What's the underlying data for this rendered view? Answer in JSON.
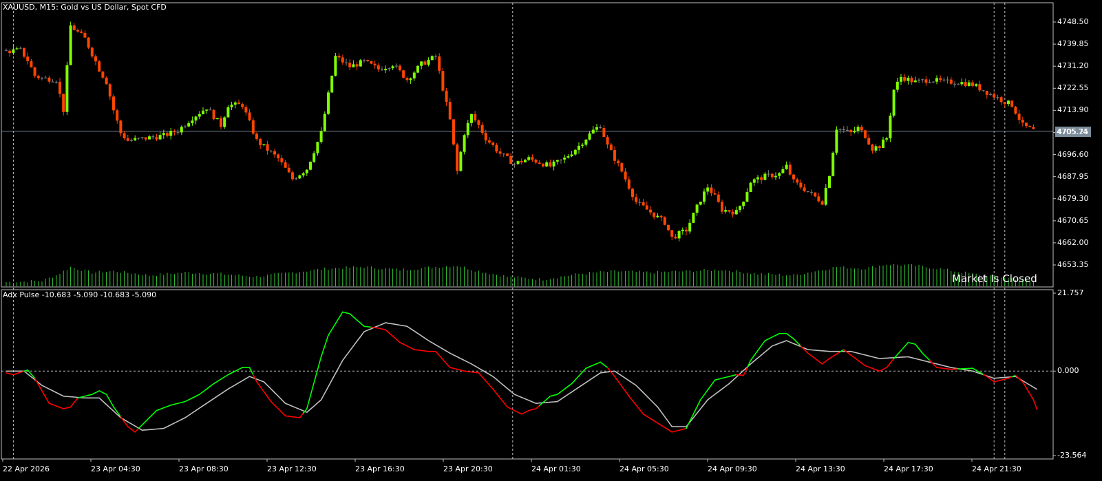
{
  "header": {
    "symbol_line": "XAUUSD, M15:  Gold vs US Dollar, Spot CFD",
    "indicator_line": "Adx Pulse -10.683 -5.090 -10.683 -5.090",
    "market_status": "Market Is Closed",
    "current_price": "4705.74"
  },
  "colors": {
    "background": "#000000",
    "bull_candle": "#7fff00",
    "bear_candle": "#ff4500",
    "neutral_candle": "#808080",
    "volume": "#32cd32",
    "pulse_up": "#00ff00",
    "pulse_down": "#ff0000",
    "signal_line": "#c0c0c0",
    "grid": "#c0c0c0",
    "price_line": "#7b8b99"
  },
  "chart_data": [
    {
      "type": "candlestick",
      "title": "XAUUSD, M15:  Gold vs US Dollar, Spot CFD",
      "ylim": [
        4648.0,
        4757.0
      ],
      "y_ticks": [
        "4748.50",
        "4739.85",
        "4731.20",
        "4722.55",
        "4713.90",
        "4705.25",
        "4696.60",
        "4687.95",
        "4679.30",
        "4670.65",
        "4662.00",
        "4653.35"
      ],
      "x_ticks": [
        "22 Apr 2026",
        "23 Apr 04:30",
        "23 Apr 08:30",
        "23 Apr 12:30",
        "23 Apr 16:30",
        "23 Apr 20:30",
        "24 Apr 01:30",
        "24 Apr 05:30",
        "24 Apr 09:30",
        "24 Apr 13:30",
        "24 Apr 17:30",
        "24 Apr 21:30"
      ],
      "current_price": 4705.74,
      "close_anchors": [
        [
          0,
          4737.0
        ],
        [
          4,
          4737.5
        ],
        [
          6,
          4733.5
        ],
        [
          8,
          4727.5
        ],
        [
          10,
          4726.5
        ],
        [
          14,
          4726.0
        ],
        [
          16,
          4714.0
        ],
        [
          18,
          4747.0
        ],
        [
          22,
          4742.0
        ],
        [
          26,
          4730.0
        ],
        [
          28,
          4725.0
        ],
        [
          30,
          4714.0
        ],
        [
          32,
          4705.0
        ],
        [
          34,
          4702.0
        ],
        [
          44,
          4704.0
        ],
        [
          48,
          4706.0
        ],
        [
          52,
          4711.0
        ],
        [
          56,
          4715.0
        ],
        [
          60,
          4708.0
        ],
        [
          62,
          4716.0
        ],
        [
          66,
          4716.0
        ],
        [
          70,
          4702.0
        ],
        [
          76,
          4695.0
        ],
        [
          80,
          4687.0
        ],
        [
          84,
          4691.0
        ],
        [
          88,
          4705.0
        ],
        [
          92,
          4735.0
        ],
        [
          96,
          4731.0
        ],
        [
          100,
          4733.0
        ],
        [
          104,
          4730.0
        ],
        [
          108,
          4732.0
        ],
        [
          112,
          4726.0
        ],
        [
          116,
          4732.0
        ],
        [
          120,
          4735.0
        ],
        [
          124,
          4710.0
        ],
        [
          126,
          4690.0
        ],
        [
          128,
          4705.0
        ],
        [
          130,
          4712.0
        ],
        [
          132,
          4708.0
        ],
        [
          134,
          4703.0
        ],
        [
          138,
          4697.0
        ],
        [
          142,
          4693.0
        ],
        [
          146,
          4695.0
        ],
        [
          148,
          4694.0
        ],
        [
          152,
          4692.0
        ],
        [
          156,
          4695.0
        ],
        [
          160,
          4700.0
        ],
        [
          164,
          4706.0
        ],
        [
          166,
          4708.0
        ],
        [
          168,
          4700.0
        ],
        [
          172,
          4690.0
        ],
        [
          176,
          4678.0
        ],
        [
          180,
          4674.0
        ],
        [
          184,
          4670.0
        ],
        [
          186,
          4664.0
        ],
        [
          190,
          4667.0
        ],
        [
          194,
          4679.0
        ],
        [
          196,
          4684.0
        ],
        [
          198,
          4680.0
        ],
        [
          200,
          4675.0
        ],
        [
          204,
          4674.0
        ],
        [
          206,
          4679.0
        ],
        [
          208,
          4686.0
        ],
        [
          212,
          4688.0
        ],
        [
          216,
          4689.0
        ],
        [
          218,
          4692.0
        ],
        [
          220,
          4686.0
        ],
        [
          222,
          4684.0
        ],
        [
          226,
          4680.0
        ],
        [
          228,
          4678.0
        ],
        [
          230,
          4689.0
        ],
        [
          232,
          4707.0
        ],
        [
          236,
          4705.0
        ],
        [
          238,
          4707.0
        ],
        [
          240,
          4704.0
        ],
        [
          242,
          4699.0
        ],
        [
          244,
          4700.0
        ],
        [
          246,
          4703.0
        ],
        [
          248,
          4722.0
        ],
        [
          250,
          4727.0
        ],
        [
          254,
          4725.0
        ],
        [
          258,
          4726.0
        ],
        [
          262,
          4725.0
        ],
        [
          266,
          4725.0
        ],
        [
          270,
          4724.0
        ],
        [
          274,
          4721.0
        ],
        [
          278,
          4718.0
        ],
        [
          281,
          4716.0
        ],
        [
          284,
          4708.0
        ],
        [
          287,
          4706.0
        ]
      ],
      "volume_anchors": [
        [
          0,
          6
        ],
        [
          10,
          8
        ],
        [
          14,
          16
        ],
        [
          18,
          28
        ],
        [
          24,
          20
        ],
        [
          30,
          22
        ],
        [
          40,
          16
        ],
        [
          50,
          20
        ],
        [
          60,
          18
        ],
        [
          70,
          14
        ],
        [
          80,
          20
        ],
        [
          90,
          26
        ],
        [
          100,
          28
        ],
        [
          110,
          24
        ],
        [
          120,
          28
        ],
        [
          126,
          30
        ],
        [
          132,
          22
        ],
        [
          140,
          14
        ],
        [
          150,
          10
        ],
        [
          160,
          18
        ],
        [
          170,
          22
        ],
        [
          180,
          20
        ],
        [
          190,
          22
        ],
        [
          200,
          24
        ],
        [
          210,
          18
        ],
        [
          220,
          16
        ],
        [
          228,
          24
        ],
        [
          232,
          28
        ],
        [
          240,
          26
        ],
        [
          246,
          32
        ],
        [
          254,
          30
        ],
        [
          260,
          26
        ],
        [
          270,
          18
        ],
        [
          280,
          12
        ],
        [
          287,
          8
        ]
      ]
    },
    {
      "type": "line",
      "title": "Adx Pulse -10.683 -5.090 -10.683 -5.090",
      "ylim": [
        -23.564,
        21.757
      ],
      "y_ticks": [
        "21.757",
        "0.000",
        "-23.564"
      ],
      "series": [
        {
          "anchors": [
            [
              0,
              -0.5
            ],
            [
              2,
              -1.0
            ],
            [
              6,
              0.3
            ],
            [
              8,
              -2.0
            ],
            [
              12,
              -9.0
            ],
            [
              16,
              -10.5
            ],
            [
              18,
              -10.0
            ],
            [
              20,
              -7.5
            ],
            [
              24,
              -6.5
            ],
            [
              26,
              -5.5
            ],
            [
              28,
              -6.5
            ],
            [
              30,
              -10.0
            ],
            [
              34,
              -15.5
            ],
            [
              36,
              -17.0
            ],
            [
              38,
              -15.0
            ],
            [
              42,
              -11.0
            ],
            [
              46,
              -9.5
            ],
            [
              50,
              -8.5
            ],
            [
              54,
              -6.5
            ],
            [
              58,
              -3.5
            ],
            [
              62,
              -1.0
            ],
            [
              66,
              1.0
            ],
            [
              68,
              1.0
            ],
            [
              70,
              -3.0
            ],
            [
              74,
              -8.5
            ],
            [
              78,
              -12.5
            ],
            [
              82,
              -13.0
            ],
            [
              84,
              -10.5
            ],
            [
              88,
              4.0
            ],
            [
              90,
              10.0
            ],
            [
              94,
              16.5
            ],
            [
              96,
              16.0
            ],
            [
              100,
              12.5
            ],
            [
              104,
              12.0
            ],
            [
              106,
              11.5
            ],
            [
              110,
              8.0
            ],
            [
              114,
              6.0
            ],
            [
              118,
              5.5
            ],
            [
              120,
              5.5
            ],
            [
              124,
              1.0
            ],
            [
              128,
              0.0
            ],
            [
              132,
              -0.5
            ],
            [
              136,
              -5.0
            ],
            [
              140,
              -10.0
            ],
            [
              144,
              -12.0
            ],
            [
              146,
              -11.0
            ],
            [
              148,
              -10.5
            ],
            [
              152,
              -7.0
            ],
            [
              154,
              -6.5
            ],
            [
              158,
              -3.5
            ],
            [
              162,
              0.8
            ],
            [
              166,
              2.5
            ],
            [
              168,
              1.0
            ],
            [
              170,
              -1.5
            ],
            [
              174,
              -7.0
            ],
            [
              178,
              -12.0
            ],
            [
              182,
              -14.5
            ],
            [
              186,
              -17.0
            ],
            [
              190,
              -16.0
            ],
            [
              194,
              -8.0
            ],
            [
              198,
              -2.5
            ],
            [
              200,
              -2.0
            ],
            [
              204,
              -1.0
            ],
            [
              206,
              -1.2
            ],
            [
              208,
              3.0
            ],
            [
              212,
              8.5
            ],
            [
              216,
              10.5
            ],
            [
              218,
              10.5
            ],
            [
              220,
              9.0
            ],
            [
              224,
              5.0
            ],
            [
              228,
              2.0
            ],
            [
              230,
              3.5
            ],
            [
              234,
              6.0
            ],
            [
              236,
              4.5
            ],
            [
              240,
              1.5
            ],
            [
              244,
              0.0
            ],
            [
              246,
              1.0
            ],
            [
              248,
              3.5
            ],
            [
              252,
              8.0
            ],
            [
              254,
              7.5
            ],
            [
              256,
              5.0
            ],
            [
              260,
              1.0
            ],
            [
              264,
              0.5
            ],
            [
              270,
              0.8
            ],
            [
              274,
              -1.5
            ],
            [
              276,
              -3.0
            ],
            [
              280,
              -2.0
            ],
            [
              282,
              -1.2
            ],
            [
              284,
              -3.0
            ],
            [
              287,
              -8.0
            ],
            [
              288,
              -10.683
            ]
          ]
        },
        {
          "name": "signal",
          "anchors": [
            [
              0,
              0.0
            ],
            [
              5,
              0.0
            ],
            [
              10,
              -4.0
            ],
            [
              16,
              -7.0
            ],
            [
              22,
              -7.5
            ],
            [
              26,
              -7.5
            ],
            [
              32,
              -13.0
            ],
            [
              38,
              -16.5
            ],
            [
              44,
              -16.0
            ],
            [
              50,
              -13.0
            ],
            [
              56,
              -9.0
            ],
            [
              62,
              -5.0
            ],
            [
              68,
              -1.5
            ],
            [
              72,
              -3.0
            ],
            [
              78,
              -9.0
            ],
            [
              84,
              -11.5
            ],
            [
              88,
              -8.0
            ],
            [
              94,
              3.0
            ],
            [
              100,
              11.0
            ],
            [
              106,
              13.5
            ],
            [
              112,
              12.5
            ],
            [
              118,
              8.5
            ],
            [
              124,
              5.0
            ],
            [
              130,
              2.0
            ],
            [
              136,
              -1.5
            ],
            [
              142,
              -6.5
            ],
            [
              148,
              -9.0
            ],
            [
              154,
              -8.5
            ],
            [
              160,
              -4.5
            ],
            [
              166,
              -0.5
            ],
            [
              170,
              0.0
            ],
            [
              176,
              -4.0
            ],
            [
              182,
              -10.0
            ],
            [
              186,
              -15.5
            ],
            [
              190,
              -15.5
            ],
            [
              196,
              -8.0
            ],
            [
              202,
              -3.5
            ],
            [
              208,
              2.0
            ],
            [
              214,
              7.0
            ],
            [
              218,
              8.5
            ],
            [
              224,
              6.0
            ],
            [
              230,
              5.5
            ],
            [
              236,
              5.5
            ],
            [
              244,
              3.5
            ],
            [
              252,
              4.0
            ],
            [
              258,
              2.5
            ],
            [
              264,
              1.0
            ],
            [
              270,
              0.0
            ],
            [
              276,
              -2.0
            ],
            [
              282,
              -1.5
            ],
            [
              288,
              -5.09
            ]
          ]
        }
      ]
    }
  ]
}
